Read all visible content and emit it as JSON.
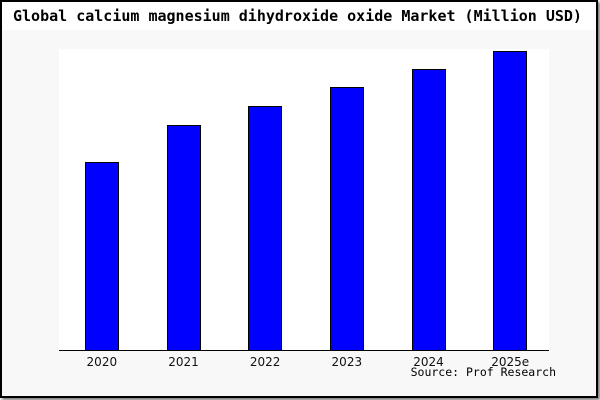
{
  "title": "Global calcium magnesium dihydroxide oxide Market (Million USD)",
  "source_credit": "Source: Prof Research",
  "colors": {
    "bar_fill": "#0000ff",
    "bar_border": "#000000",
    "figure_background": "#f8f8f8",
    "plot_background": "#ffffff",
    "frame_border": "#000000",
    "axis_line": "#000000",
    "title_background": "#ffffff",
    "text": "#000000"
  },
  "chart_data": {
    "type": "bar",
    "title": "Global calcium magnesium dihydroxide oxide Market (Million USD)",
    "categories": [
      "2020",
      "2021",
      "2022",
      "2023",
      "2024",
      "2025e"
    ],
    "values": [
      62.9,
      75.1,
      81.6,
      87.8,
      93.8,
      100
    ],
    "units": "relative index, estimated from bar heights (y-axis has no tick labels; 2025e = 100)",
    "xlabel": "",
    "ylabel": "",
    "ylim": [
      0,
      100.5
    ],
    "grid": false,
    "legend": false,
    "bar_color": "#0000ff",
    "annotation": "Source: Prof Research"
  }
}
